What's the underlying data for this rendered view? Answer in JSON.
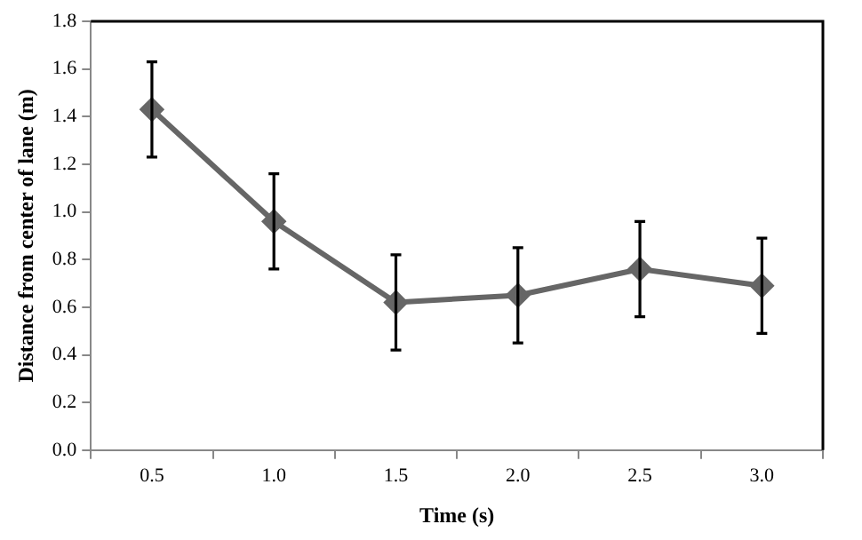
{
  "chart_data": {
    "type": "line",
    "xlabel": "Time (s)",
    "ylabel": "Distance from center of lane (m)",
    "categories": [
      "0.5",
      "1.0",
      "1.5",
      "2.0",
      "2.5",
      "3.0"
    ],
    "series": [
      {
        "color": "#666666",
        "values": [
          1.43,
          0.96,
          0.62,
          0.65,
          0.76,
          0.69
        ],
        "errors": [
          0.2,
          0.2,
          0.2,
          0.2,
          0.2,
          0.2
        ]
      }
    ],
    "ylim": [
      0,
      1.8
    ],
    "yticks": [
      {
        "value": 0,
        "label": "0.0"
      },
      {
        "value": 0.2,
        "label": "0.2"
      },
      {
        "value": 0.4,
        "label": "0.4"
      },
      {
        "value": 0.6,
        "label": "0.6"
      },
      {
        "value": 0.8,
        "label": "0.8"
      },
      {
        "value": 1,
        "label": "1.0"
      },
      {
        "value": 1.2,
        "label": "1.2"
      },
      {
        "value": 1.4,
        "label": "1.4"
      },
      {
        "value": 1.6,
        "label": "1.6"
      },
      {
        "value": 1.8,
        "label": "1.8"
      }
    ],
    "grid": false,
    "legend": false,
    "marker": "diamond",
    "line_style": "solid"
  }
}
